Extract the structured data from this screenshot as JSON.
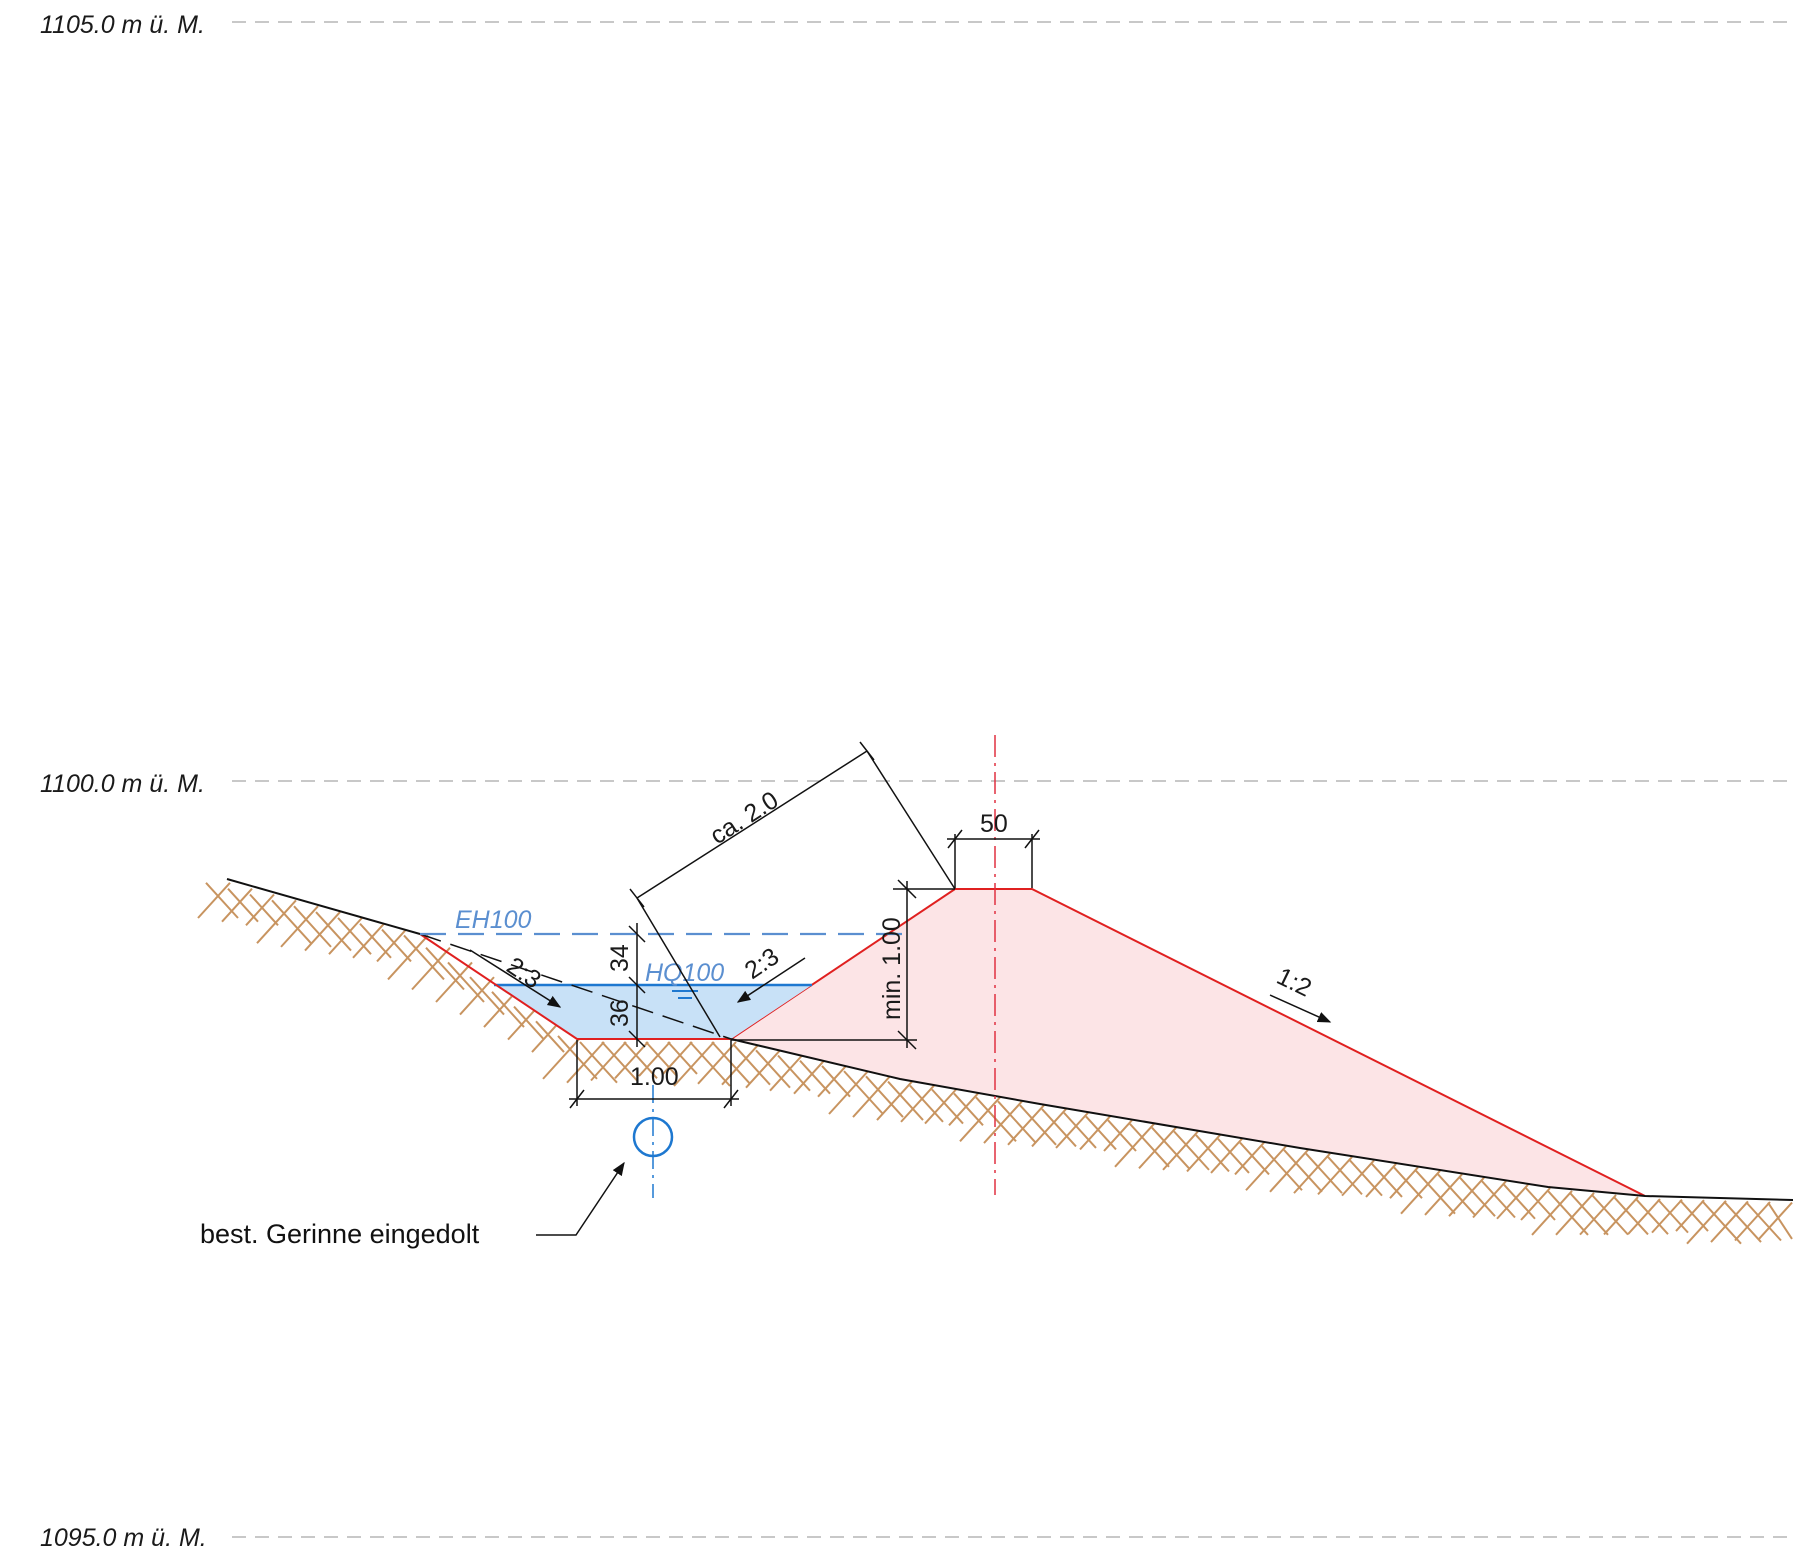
{
  "elevations": {
    "top": "1105.0 m ü. M.",
    "mid": "1100.0 m ü. M.",
    "bottom": "1095.0 m ü. M."
  },
  "water_levels": {
    "eh100": "EH100",
    "hq100": "HQ100"
  },
  "dimensions": {
    "ca_2_0": "ca. 2.0",
    "crest_width": "50",
    "min_height": "min. 1.00",
    "freeboard": "34",
    "water_depth": "36",
    "channel_width": "1.00"
  },
  "slopes": {
    "left_channel": "2:3",
    "right_channel": "2:3",
    "dam_back": "1:2"
  },
  "annotations": {
    "culvert_note": "best. Gerinne eingedolt"
  },
  "colors": {
    "ground": "#c89460",
    "fill_red": "#fce4e6",
    "fill_red_edge": "#e02020",
    "water_fill": "#c8e1f7",
    "water_line": "#1e78d0",
    "water_label": "#5b8fd0",
    "axis_red": "#e03040",
    "grid": "#b5b5b5"
  }
}
